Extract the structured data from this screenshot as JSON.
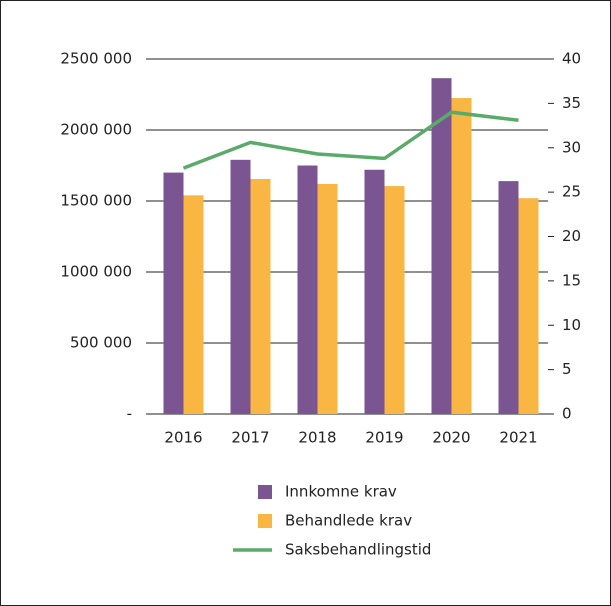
{
  "chart_data": {
    "type": "bar",
    "categories": [
      "2016",
      "2017",
      "2018",
      "2019",
      "2020",
      "2021"
    ],
    "series": [
      {
        "name": "Innkomne krav",
        "color": "#7b5592",
        "values": [
          1700000,
          1790000,
          1750000,
          1720000,
          2365000,
          1640000
        ]
      },
      {
        "name": "Behandlede krav",
        "color": "#f9b642",
        "values": [
          1540000,
          1655000,
          1620000,
          1605000,
          2225000,
          1520000
        ]
      },
      {
        "name": "Saksbehandlingstid",
        "type": "line",
        "axis": "y2",
        "color": "#5aaa6a",
        "values": [
          27.7,
          30.6,
          29.3,
          28.8,
          34.0,
          33.1
        ]
      }
    ],
    "ylim": [
      0,
      2500000
    ],
    "yticks": [
      {
        "value": 0,
        "label": "-"
      },
      {
        "value": 500000,
        "label": "500 000"
      },
      {
        "value": 1000000,
        "label": "1000 000"
      },
      {
        "value": 1500000,
        "label": "1500 000"
      },
      {
        "value": 2000000,
        "label": "2000 000"
      },
      {
        "value": 2500000,
        "label": "2500 000"
      }
    ],
    "y2lim": [
      0,
      40
    ],
    "y2ticks": [
      0,
      5,
      10,
      15,
      20,
      25,
      30,
      35,
      40
    ],
    "grid": true,
    "legend": "bottom"
  }
}
